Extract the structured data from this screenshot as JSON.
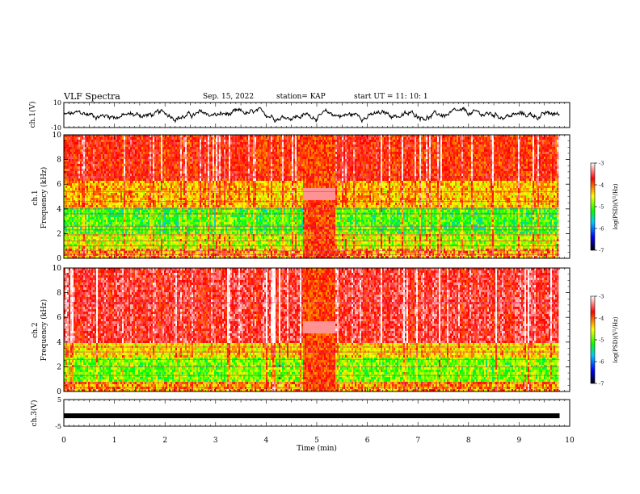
{
  "header": {
    "title": "VLF Spectra",
    "date": "Sep. 15, 2022",
    "station": "station= KAP",
    "start": "start  UT =   11: 10: 1"
  },
  "colors": {
    "spectrogram_stops": [
      "#000000",
      "#0000ff",
      "#00c8ff",
      "#00ff00",
      "#ffff00",
      "#ff0000",
      "#ffffff"
    ],
    "trace": "#000000"
  },
  "chart_data": [
    {
      "type": "line",
      "panel": "ch1-waveform",
      "ylabel": "ch.1(V)",
      "ylim": [
        -10,
        10
      ],
      "yticks": [
        -10,
        10
      ],
      "ytick_labels": [
        "-10",
        "10"
      ],
      "xlim": [
        0,
        10
      ],
      "series": [
        {
          "values_range": [
            -5,
            6
          ]
        }
      ]
    },
    {
      "type": "heatmap",
      "panel": "ch1-spectrogram",
      "ylabel_line1": "ch.1",
      "ylabel_line2": "Frequency  (kHz)",
      "ylim": [
        0,
        10
      ],
      "yticks": [
        0,
        2,
        4,
        6,
        8,
        10
      ],
      "ytick_labels": [
        "0",
        "2",
        "4",
        "6",
        "8",
        "10"
      ],
      "xlim": [
        0,
        10
      ],
      "data_end_min": 9.8,
      "colorbar": {
        "label": "log(PSD)(V²/Hz)",
        "range": [
          -7,
          -3
        ],
        "ticks": [
          -3,
          -4,
          -5,
          -6,
          -7
        ],
        "tick_labels": [
          "-3",
          "-4",
          "-5",
          "-6",
          "-7"
        ]
      }
    },
    {
      "type": "heatmap",
      "panel": "ch2-spectrogram",
      "ylabel_line1": "ch.2",
      "ylabel_line2": "Frequency  (kHz)",
      "ylim": [
        0,
        10
      ],
      "yticks": [
        0,
        2,
        4,
        6,
        8,
        10
      ],
      "ytick_labels": [
        "0",
        "2",
        "4",
        "6",
        "8",
        "10"
      ],
      "xlim": [
        0,
        10
      ],
      "data_end_min": 9.8,
      "colorbar": {
        "label": "log(PSD)(V²/Hz)",
        "range": [
          -7,
          -3
        ],
        "ticks": [
          -3,
          -4,
          -5,
          -6,
          -7
        ],
        "tick_labels": [
          "-3",
          "-4",
          "-5",
          "-6",
          "-7"
        ]
      }
    },
    {
      "type": "line",
      "panel": "ch3-waveform",
      "ylabel": "ch.3(V)",
      "ylim": [
        -5,
        5
      ],
      "yticks": [
        -5,
        5
      ],
      "ytick_labels": [
        "-5",
        "5"
      ],
      "xlim": [
        0,
        10
      ],
      "series": [
        {
          "level": -1.1
        }
      ],
      "xlabel": "Time  (min)",
      "xticks": [
        0,
        1,
        2,
        3,
        4,
        5,
        6,
        7,
        8,
        9,
        10
      ],
      "xtick_labels": [
        "0",
        "1",
        "2",
        "3",
        "4",
        "5",
        "6",
        "7",
        "8",
        "9",
        "10"
      ]
    }
  ]
}
